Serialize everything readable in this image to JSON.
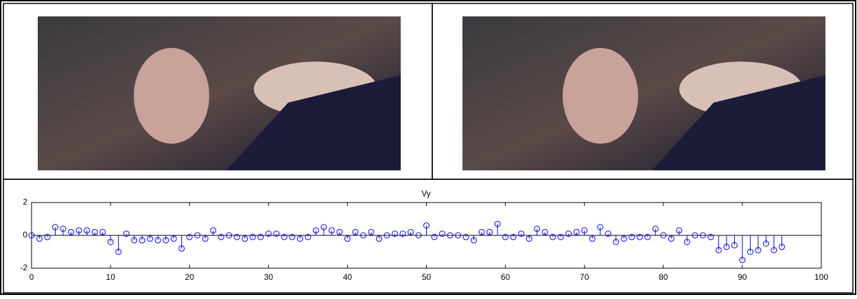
{
  "chart_data": {
    "type": "stem",
    "title": "Vy",
    "x": [
      0,
      1,
      2,
      3,
      4,
      5,
      6,
      7,
      8,
      9,
      10,
      11,
      12,
      13,
      14,
      15,
      16,
      17,
      18,
      19,
      20,
      21,
      22,
      23,
      24,
      25,
      26,
      27,
      28,
      29,
      30,
      31,
      32,
      33,
      34,
      35,
      36,
      37,
      38,
      39,
      40,
      41,
      42,
      43,
      44,
      45,
      46,
      47,
      48,
      49,
      50,
      51,
      52,
      53,
      54,
      55,
      56,
      57,
      58,
      59,
      60,
      61,
      62,
      63,
      64,
      65,
      66,
      67,
      68,
      69,
      70,
      71,
      72,
      73,
      74,
      75,
      76,
      77,
      78,
      79,
      80,
      81,
      82,
      83,
      84,
      85,
      86,
      87,
      88,
      89,
      90,
      91,
      92,
      93,
      94,
      95
    ],
    "values": [
      0.0,
      -0.2,
      -0.1,
      0.5,
      0.4,
      0.2,
      0.3,
      0.3,
      0.2,
      0.2,
      -0.4,
      -1.0,
      0.1,
      -0.3,
      -0.3,
      -0.2,
      -0.3,
      -0.3,
      -0.2,
      -0.8,
      -0.1,
      0.0,
      -0.2,
      0.3,
      -0.1,
      0.0,
      -0.1,
      -0.2,
      -0.1,
      -0.1,
      0.1,
      0.1,
      -0.1,
      -0.1,
      -0.2,
      -0.1,
      0.3,
      0.5,
      0.3,
      0.2,
      -0.2,
      0.2,
      0.0,
      0.2,
      -0.2,
      0.0,
      0.1,
      0.1,
      0.2,
      0.0,
      0.6,
      -0.1,
      0.1,
      0.0,
      0.0,
      -0.1,
      -0.3,
      0.2,
      0.2,
      0.7,
      -0.1,
      -0.1,
      0.1,
      -0.2,
      0.4,
      0.2,
      -0.1,
      -0.1,
      0.1,
      0.2,
      0.3,
      -0.2,
      0.5,
      0.1,
      -0.4,
      -0.2,
      -0.1,
      -0.1,
      -0.1,
      0.4,
      0.0,
      -0.2,
      0.3,
      -0.4,
      0.0,
      0.0,
      -0.1,
      -0.9,
      -0.7,
      -0.6,
      -1.5,
      -1.0,
      -0.9,
      -0.5,
      -0.9,
      -0.7
    ],
    "color": "#0000ff",
    "xlim": [
      0,
      100
    ],
    "xticks": [
      0,
      10,
      20,
      30,
      40,
      50,
      60,
      70,
      80,
      90,
      100
    ],
    "ylim": [
      -2,
      2
    ],
    "yticks": [
      -2,
      0,
      2
    ]
  }
}
